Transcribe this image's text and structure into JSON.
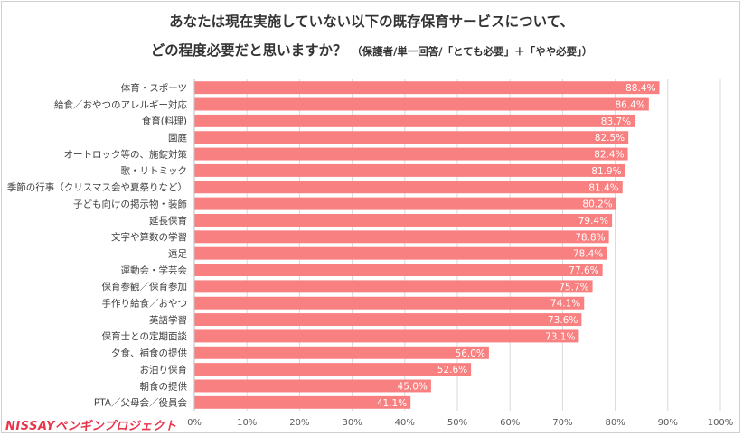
{
  "chart_data": {
    "type": "bar",
    "orientation": "horizontal",
    "title_line1": "あなたは現在実施していない以下の既存保育サービスについて、",
    "title_line2": "どの程度必要だと思いますか？",
    "title_note": "（保護者/単一回答/「とても必要」＋「やや必要」）",
    "categories": [
      "体育・スポーツ",
      "給食／おやつのアレルギー対応",
      "食育(料理)",
      "園庭",
      "オートロック等の、施錠対策",
      "歌・リトミック",
      "季節の行事（クリスマス会や夏祭りなど）",
      "子ども向けの掲示物・装飾",
      "延長保育",
      "文字や算数の学習",
      "遠足",
      "運動会・学芸会",
      "保育参観／保育参加",
      "手作り給食／おやつ",
      "英語学習",
      "保育士との定期面談",
      "夕食、補食の提供",
      "お泊り保育",
      "朝食の提供",
      "PTA／父母会／役員会"
    ],
    "values": [
      88.4,
      86.4,
      83.7,
      82.5,
      82.4,
      81.9,
      81.4,
      80.2,
      79.4,
      78.8,
      78.4,
      77.6,
      75.7,
      74.1,
      73.6,
      73.1,
      56.0,
      52.6,
      45.0,
      41.1
    ],
    "value_labels": [
      "88.4%",
      "86.4%",
      "83.7%",
      "82.5%",
      "82.4%",
      "81.9%",
      "81.4%",
      "80.2%",
      "79.4%",
      "78.8%",
      "78.4%",
      "77.6%",
      "75.7%",
      "74.1%",
      "73.6%",
      "73.1%",
      "56.0%",
      "52.6%",
      "45.0%",
      "41.1%"
    ],
    "xlim": [
      0,
      100
    ],
    "xticks": [
      "0%",
      "10%",
      "20%",
      "30%",
      "40%",
      "50%",
      "60%",
      "70%",
      "80%",
      "90%",
      "100%"
    ],
    "grid": true,
    "bar_color": "#f98080",
    "grid_color": "#d9d9d9"
  },
  "logo": {
    "text": "NISSAYペンギンプロジェクト",
    "color": "#e8354c"
  }
}
